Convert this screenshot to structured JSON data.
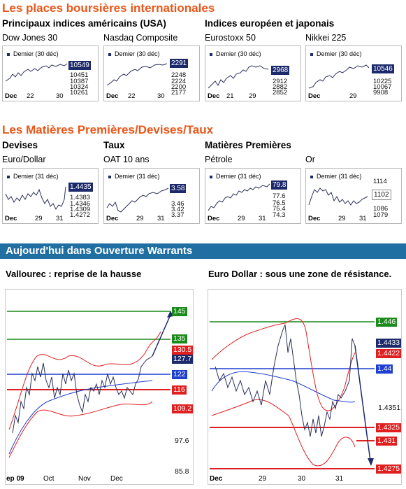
{
  "section1": {
    "title": "Les places boursières internationales",
    "left_heading": "Principaux indices américains (USA)",
    "right_heading": "Indices européen et japonais"
  },
  "section2": {
    "title": "Les Matières Premières/Devises/Taux",
    "h_devises": "Devises",
    "h_taux": "Taux",
    "h_matieres": "Matières Premières"
  },
  "mini_charts": [
    {
      "name": "Dow Jones 30",
      "legend": "Demier (30 déc)",
      "current": "10549",
      "ticks": [
        "10451",
        "10387",
        "10324",
        "10261"
      ],
      "xlabels": [
        "Dec",
        "22",
        "30"
      ]
    },
    {
      "name": "Nasdaq Composite",
      "legend": "Demier (30 déc)",
      "current": "2291",
      "ticks": [
        "2248",
        "2224",
        "2200",
        "2177"
      ],
      "xlabels": [
        "Dec",
        "22",
        "30"
      ]
    },
    {
      "name": "Eurostoxx 50",
      "legend": "Demier (30 déc)",
      "current": "2968",
      "ticks": [
        "2912",
        "2882",
        "2852"
      ],
      "xlabels": [
        "Dec",
        "21",
        "29"
      ]
    },
    {
      "name": "Nikkei 225",
      "legend": "Demier (30 déc)",
      "current": "10546",
      "ticks": [
        "10225",
        "10067",
        "9908"
      ],
      "xlabels": [
        "Dec",
        "29"
      ]
    },
    {
      "name": "Euro/Dollar",
      "legend": "Demier (31 déc)",
      "current": "1.4435",
      "ticks": [
        "1.4383",
        "1.4346",
        "1.4309",
        "1.4272"
      ],
      "xlabels": [
        "Dec",
        "29",
        "31"
      ]
    },
    {
      "name": "OAT 10 ans",
      "legend": "Demier (31 déc)",
      "current": "3.58",
      "ticks": [
        "3.46",
        "3.42",
        "3.37"
      ],
      "xlabels": [
        "Dec",
        "29",
        "31"
      ]
    },
    {
      "name": "Pétrole",
      "legend": "Demier (31 déc)",
      "current": "79.8",
      "ticks": [
        "77.6",
        "76.5",
        "75.4",
        "74.3"
      ],
      "xlabels": [
        "Dec",
        "29",
        "31"
      ]
    },
    {
      "name": "Or",
      "legend": "Demier (31 déc)",
      "current": "1102",
      "ticks": [
        "1114",
        "1086",
        "1079"
      ],
      "xlabels": [
        "Dec",
        "29",
        "31"
      ]
    }
  ],
  "banner": {
    "title": "Aujourd'hui dans Ouverture Warrants"
  },
  "warrants": [
    {
      "title": "Vallourec : reprise de la hausse",
      "tags": [
        {
          "value": "145",
          "color": "#1a8a1a"
        },
        {
          "value": "135",
          "color": "#1a8a1a"
        },
        {
          "value": "130.5",
          "color": "#e02020"
        },
        {
          "value": "127.7",
          "color": "#1c2a6b"
        },
        {
          "value": "122",
          "color": "#1f3fd0"
        },
        {
          "value": "116",
          "color": "#e02020"
        },
        {
          "value": "109.2",
          "color": "#e02020"
        }
      ],
      "axis_values": [
        "97.6",
        "85.8"
      ],
      "xlabels": [
        "ep 09",
        "Oct",
        "Nov",
        "Dec"
      ]
    },
    {
      "title": "Euro Dollar : sous une zone de résistance.",
      "tags": [
        {
          "value": "1.446",
          "color": "#1a8a1a"
        },
        {
          "value": "1.4433",
          "color": "#1c2a6b"
        },
        {
          "value": "1.4422",
          "color": "#e02020"
        },
        {
          "value": "1.44",
          "color": "#1f3fd0"
        },
        {
          "value": "1.4325",
          "color": "#e02020"
        },
        {
          "value": "1.431",
          "color": "#e02020"
        },
        {
          "value": "1.4275",
          "color": "#e02020"
        }
      ],
      "axis_values": [
        "1.4351"
      ],
      "xlabels": [
        "Dec",
        "29",
        "30",
        "31"
      ]
    }
  ],
  "colors": {
    "orange": "#e8571a",
    "navy": "#1c2a6b",
    "banner": "#1f6fa3",
    "green": "#1a8a1a",
    "red": "#e02020",
    "blue": "#1f3fd0"
  }
}
